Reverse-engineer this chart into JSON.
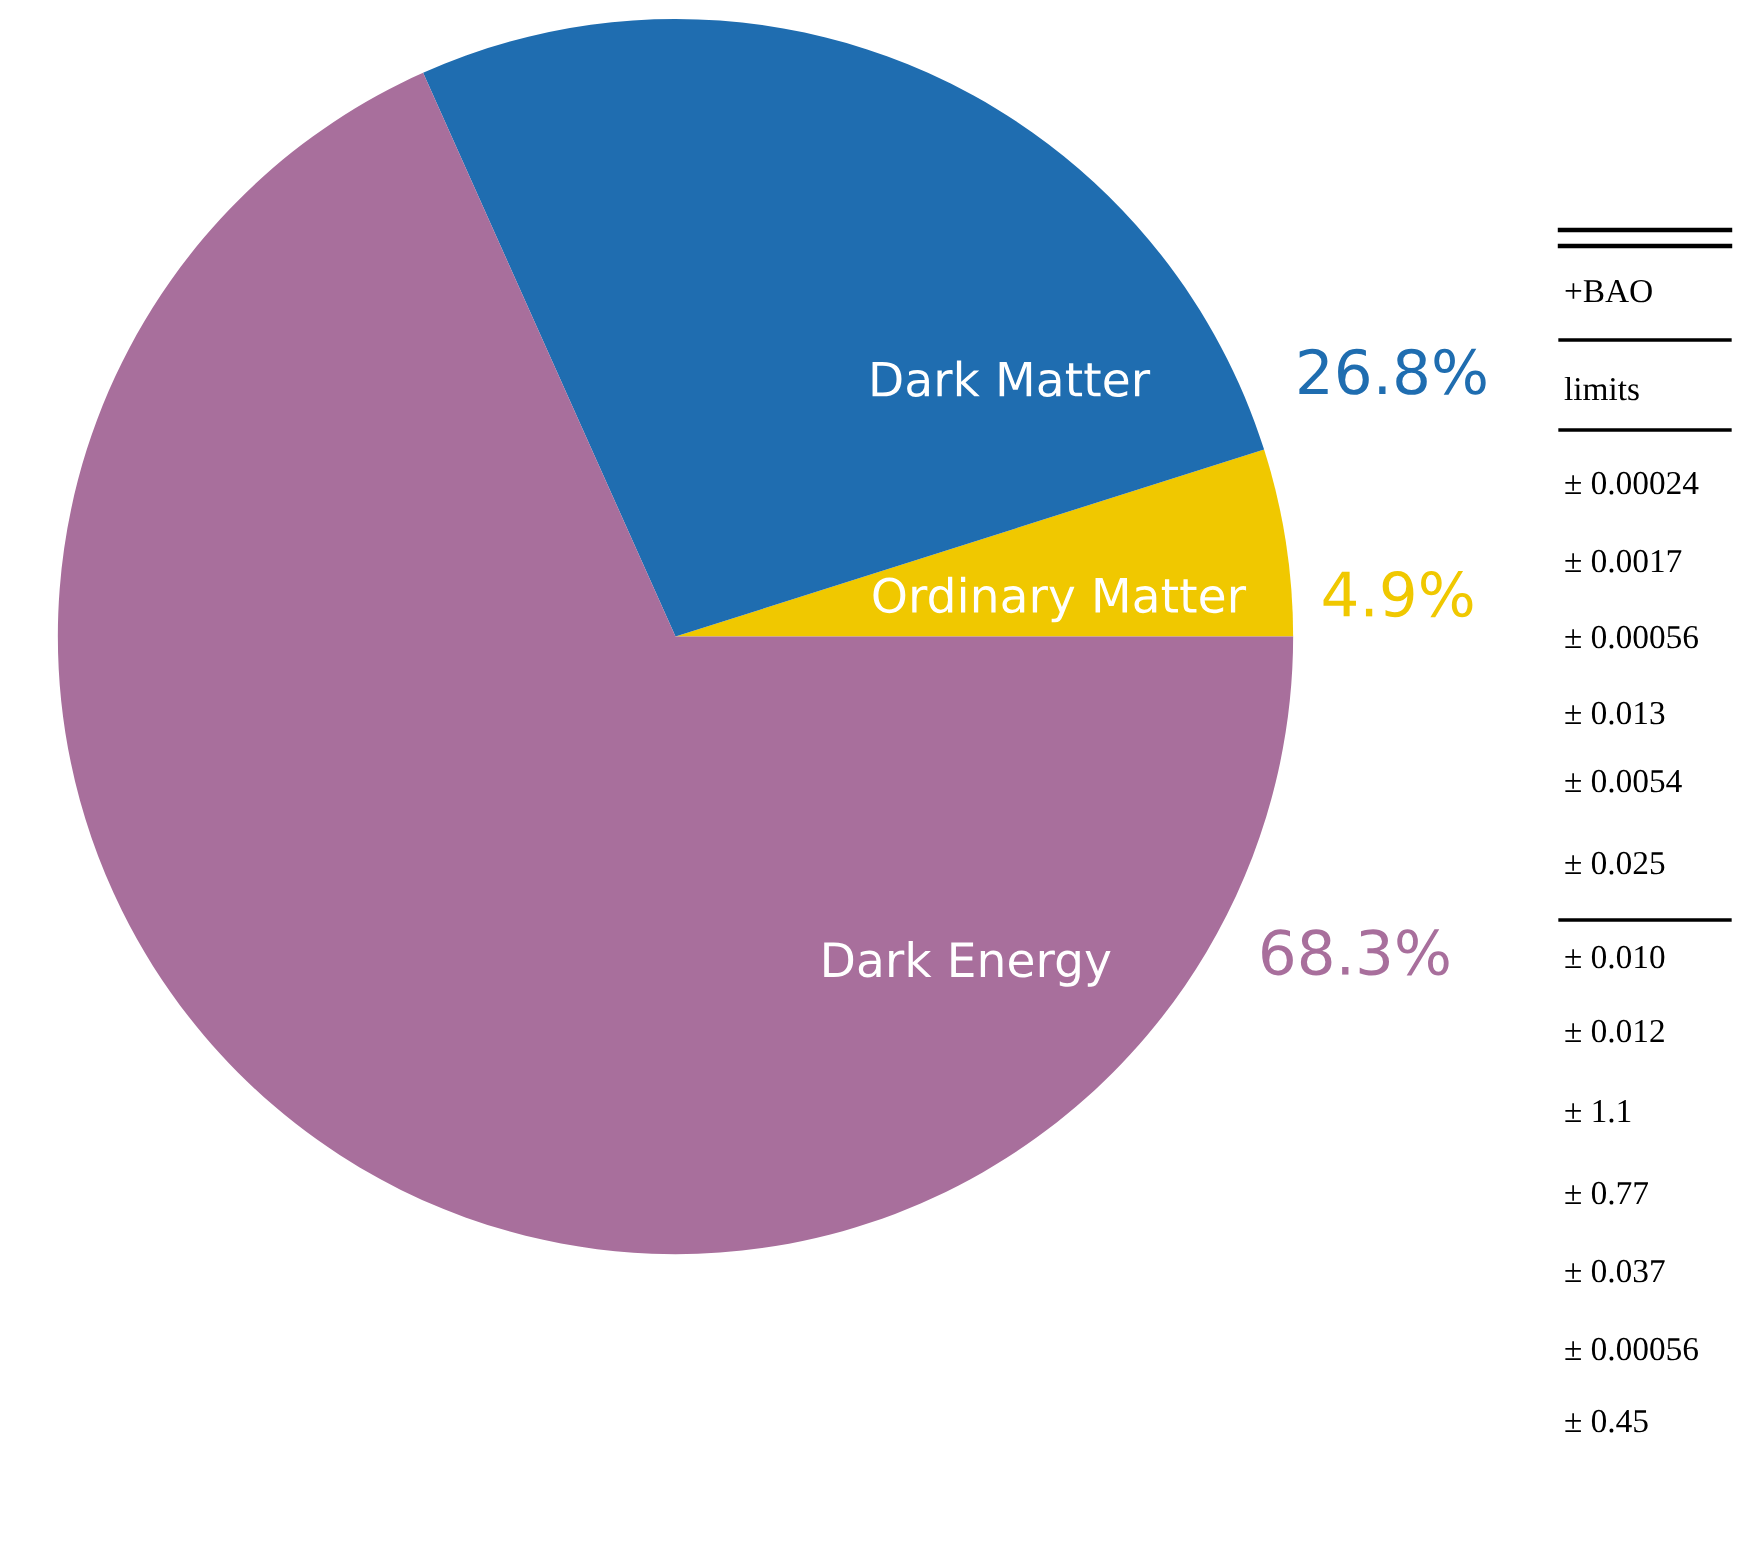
{
  "chart_data": {
    "type": "pie",
    "categories": [
      "Ordinary Matter",
      "Dark Matter",
      "Dark Energy"
    ],
    "values": [
      4.9,
      26.8,
      68.3
    ],
    "colors": [
      "#f0c800",
      "#1f6db0",
      "#a86f9c"
    ],
    "value_labels": [
      "4.9%",
      "26.8%",
      "68.3%"
    ],
    "annotations": [
      "+BAO",
      "limits",
      "± 0.00024",
      "± 0.0017",
      "± 0.00056",
      "± 0.013",
      "± 0.0054",
      "± 0.025",
      "± 0.010",
      "± 0.012",
      "± 1.1",
      "± 0.77",
      "± 0.037",
      "± 0.00056",
      "± 0.45"
    ]
  }
}
